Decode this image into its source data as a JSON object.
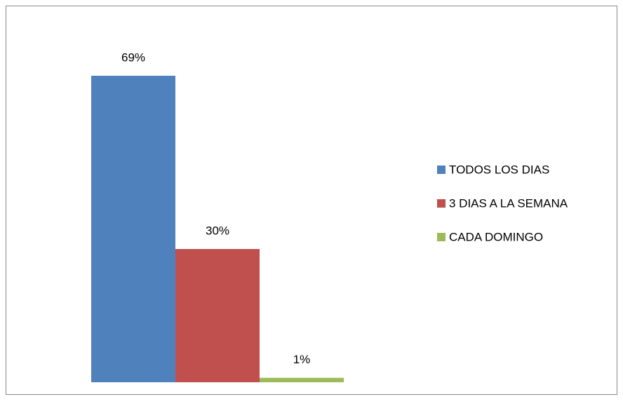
{
  "chart_data": {
    "type": "bar",
    "series": [
      {
        "name": "TODOS LOS DIAS",
        "color": "#4f81bd",
        "values": [
          69
        ],
        "value_labels": [
          "69%"
        ]
      },
      {
        "name": "3 DIAS A LA SEMANA",
        "color": "#c0504d",
        "values": [
          30
        ],
        "value_labels": [
          "30%"
        ]
      },
      {
        "name": "CADA DOMINGO",
        "color": "#9bbb59",
        "values": [
          1
        ],
        "value_labels": [
          "1%"
        ]
      }
    ],
    "legend": "right"
  }
}
